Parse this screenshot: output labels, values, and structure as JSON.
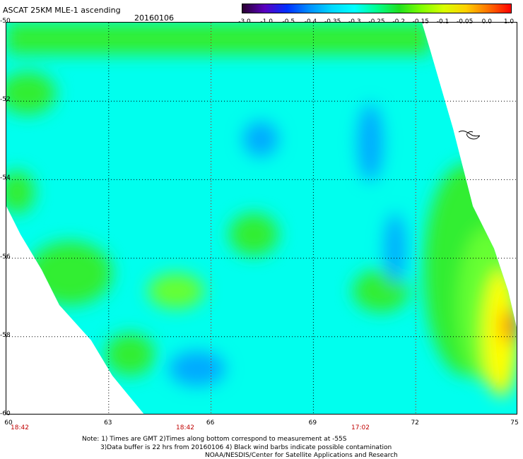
{
  "header": {
    "title": "ASCAT 25KM MLE-1 ascending",
    "date": "20160106"
  },
  "colorbar": {
    "labels": [
      "-3.0",
      "-1.0",
      "-0.5",
      "-0.4",
      "-0.35",
      "-0.3",
      "-0.25",
      "-0.2",
      "-0.15",
      "-0.1",
      "-0.05",
      "0.0",
      "1.0"
    ],
    "colors": [
      "#2a0030",
      "#5a00c0",
      "#0030ff",
      "#0090ff",
      "#00d8ff",
      "#00ffff",
      "#00ff90",
      "#20e020",
      "#80ff00",
      "#d8ff00",
      "#ffd000",
      "#ff7000",
      "#ff0000"
    ]
  },
  "map": {
    "lat_labels": [
      "-50",
      "-52",
      "-54",
      "-56",
      "-58",
      "-60"
    ],
    "lon_labels": [
      "60",
      "63",
      "66",
      "69",
      "72",
      "75"
    ],
    "time_labels": [
      "18:42",
      "18:42",
      "17:02"
    ],
    "colors": {
      "background": "#00ffee",
      "green": "#33ee33",
      "light_green": "#66ff33",
      "yellow": "#ffff00",
      "orange": "#ff8800",
      "blue": "#00aaff"
    }
  },
  "notes": [
    "Note: 1) Times are GMT 2)Times along bottom correspond to measurement at -55S",
    "3)Data buffer is 22 hrs from 20160106 4) Black wind barbs indicate possible contamination",
    "NOAA/NESDIS/Center for Satellite Applications and Research"
  ]
}
